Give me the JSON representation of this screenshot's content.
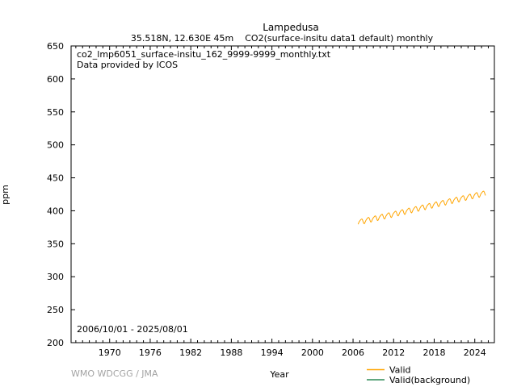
{
  "header": {
    "title": "Lampedusa",
    "subtitle_location": "35.518N, 12.630E 45m",
    "subtitle_dataset": "CO2(surface-insitu data1 default) monthly"
  },
  "annotations": {
    "filename": "co2_lmp6051_surface-insitu_162_9999-9999_monthly.txt",
    "provider": "Data provided by ICOS",
    "date_range": "2006/10/01 - 2025/08/01"
  },
  "footer": {
    "attribution": "WMO WDCGG / JMA"
  },
  "chart_data": {
    "type": "line",
    "title": "Lampedusa",
    "subtitle": "35.518N, 12.630E 45m    CO2(surface-insitu data1 default) monthly",
    "xlabel": "Year",
    "ylabel": "ppm",
    "xlim": [
      1964.3,
      2026.9
    ],
    "ylim": [
      200,
      650
    ],
    "x_major_ticks": [
      1970,
      1976,
      1982,
      1988,
      1994,
      2000,
      2006,
      2012,
      2018,
      2024
    ],
    "x_minor_tick_interval_years": 1,
    "y_major_ticks": [
      200,
      250,
      300,
      350,
      400,
      450,
      500,
      550,
      600,
      650
    ],
    "grid": false,
    "legend_position": "below-bottom-right",
    "series": [
      {
        "name": "Valid",
        "color": "#FFA500",
        "cadence": "monthly",
        "start": "2006-10",
        "end": "2025-08",
        "values": [
          379.5,
          381.7,
          383.5,
          384.7,
          385.8,
          386.7,
          387.5,
          387.4,
          385.8,
          383.2,
          381.0,
          380.5,
          381.8,
          384.0,
          385.8,
          387.1,
          388.2,
          389.1,
          389.9,
          389.8,
          388.2,
          385.6,
          383.4,
          382.9,
          384.2,
          386.4,
          388.2,
          389.4,
          390.5,
          391.4,
          392.2,
          392.1,
          390.5,
          387.9,
          385.7,
          385.2,
          386.5,
          388.7,
          390.5,
          391.8,
          392.9,
          393.8,
          394.6,
          394.5,
          392.9,
          390.3,
          388.1,
          387.6,
          388.9,
          391.1,
          392.9,
          394.1,
          395.2,
          396.1,
          396.9,
          396.8,
          395.2,
          392.6,
          390.4,
          389.9,
          391.2,
          393.4,
          395.2,
          396.5,
          397.6,
          398.5,
          399.3,
          399.2,
          397.6,
          395.0,
          392.8,
          392.3,
          393.6,
          395.8,
          397.6,
          398.8,
          399.9,
          400.8,
          401.6,
          401.5,
          399.9,
          397.3,
          395.1,
          394.6,
          395.9,
          398.1,
          399.9,
          401.2,
          402.3,
          403.2,
          404.0,
          403.9,
          402.3,
          399.7,
          397.5,
          397.0,
          398.3,
          400.5,
          402.3,
          403.5,
          404.6,
          405.5,
          406.3,
          406.2,
          404.6,
          402.0,
          399.8,
          399.3,
          400.6,
          402.8,
          404.6,
          405.9,
          407.0,
          407.9,
          408.7,
          408.6,
          407.0,
          404.4,
          402.2,
          401.7,
          403.0,
          405.2,
          407.0,
          408.2,
          409.3,
          410.2,
          411.0,
          410.9,
          409.3,
          406.7,
          404.5,
          404.0,
          405.3,
          407.5,
          409.3,
          410.6,
          411.7,
          412.6,
          413.4,
          413.3,
          411.7,
          409.1,
          406.9,
          406.4,
          407.7,
          409.9,
          411.7,
          412.9,
          414.0,
          414.9,
          415.7,
          415.6,
          414.0,
          411.4,
          409.2,
          408.7,
          410.0,
          412.2,
          414.0,
          415.3,
          416.4,
          417.3,
          418.1,
          418.0,
          416.4,
          413.8,
          411.6,
          411.1,
          412.4,
          414.6,
          416.4,
          417.6,
          418.7,
          419.6,
          420.4,
          420.3,
          418.7,
          416.1,
          413.9,
          413.4,
          414.7,
          416.9,
          418.7,
          420.0,
          421.1,
          422.0,
          422.8,
          422.7,
          421.1,
          418.5,
          416.3,
          415.8,
          417.1,
          419.3,
          421.1,
          422.3,
          423.4,
          424.3,
          425.1,
          425.0,
          423.4,
          420.8,
          418.6,
          418.1,
          419.4,
          421.6,
          423.4,
          424.7,
          425.8,
          426.7,
          427.5,
          427.4,
          425.8,
          423.2,
          421.0,
          420.5,
          421.8,
          424.0,
          425.8,
          427.0,
          428.1,
          429.0,
          429.8,
          429.7,
          428.1,
          425.5,
          423.3
        ]
      },
      {
        "name": "Valid(background)",
        "color": "#2E8B57",
        "cadence": "monthly",
        "values": []
      }
    ]
  }
}
